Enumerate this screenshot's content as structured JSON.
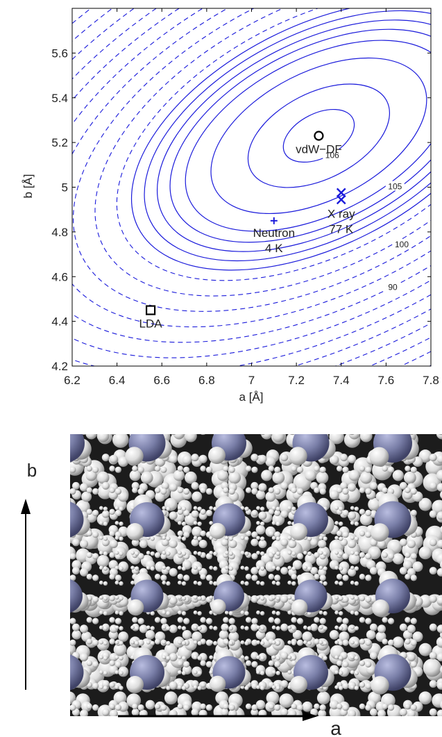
{
  "chart_data": {
    "type": "contour",
    "xlabel": "a [Å]",
    "ylabel": "b [Å]",
    "xlim": [
      6.2,
      7.8
    ],
    "ylim": [
      4.2,
      5.8
    ],
    "x_ticks": [
      "6.2",
      "6.4",
      "6.6",
      "6.8",
      "7",
      "7.2",
      "7.4",
      "7.6",
      "7.8"
    ],
    "y_ticks": [
      "4.2",
      "4.4",
      "4.6",
      "4.8",
      "5",
      "5.2",
      "5.4",
      "5.6"
    ],
    "contour_color": "#1a1adb",
    "minimum": {
      "a": 7.3,
      "b": 5.23
    },
    "contour_labels": [
      {
        "text": "106",
        "a": 7.36,
        "b": 5.14
      },
      {
        "text": "105",
        "a": 7.64,
        "b": 5.0
      },
      {
        "text": "100",
        "a": 7.67,
        "b": 4.74
      },
      {
        "text": "90",
        "a": 7.63,
        "b": 4.55
      }
    ],
    "points": [
      {
        "name": "vdW-DF",
        "label_lines": [
          "vdW−DF"
        ],
        "a": 7.3,
        "b": 5.23,
        "marker": "circle",
        "color": "#000000"
      },
      {
        "name": "X ray 77 K",
        "label_lines": [
          "X ray",
          "77 K"
        ],
        "a": 7.4,
        "b": 4.96,
        "marker": "x-pair",
        "color": "#1a1adb"
      },
      {
        "name": "Neutron 4 K",
        "label_lines": [
          "Neutron",
          "4 K"
        ],
        "a": 7.1,
        "b": 4.85,
        "marker": "plus",
        "color": "#1a1adb"
      },
      {
        "name": "LDA",
        "label_lines": [
          "LDA"
        ],
        "a": 6.55,
        "b": 4.45,
        "marker": "square",
        "color": "#000000"
      }
    ]
  },
  "figure": {
    "b_axis_label": "b",
    "a_axis_label": "a",
    "atom_colors": {
      "nitrogen": "#7a7fa8",
      "hydrogen": "#e6e6e6",
      "background": "#1c1c1c"
    }
  }
}
